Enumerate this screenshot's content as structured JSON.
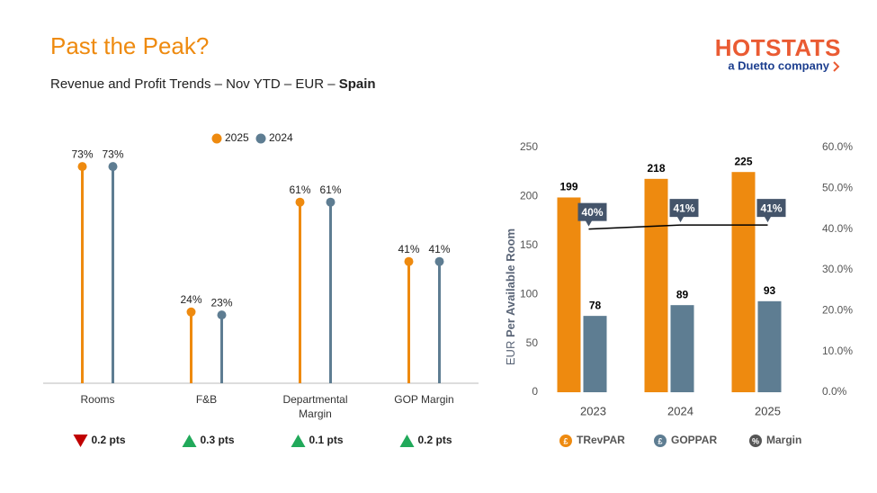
{
  "title": "Past the Peak?",
  "subtitle": "Revenue and Profit Trends – Nov YTD – EUR –",
  "subtitle_bold": "Spain",
  "logo": {
    "name": "HOTSTATS",
    "tagline": "a Duetto company"
  },
  "changes": [
    {
      "direction": "down",
      "color": "#c00000",
      "label": "0.2 pts"
    },
    {
      "direction": "up",
      "color": "#21a95a",
      "label": "0.3 pts"
    },
    {
      "direction": "up",
      "color": "#21a95a",
      "label": "0.1 pts"
    },
    {
      "direction": "up",
      "color": "#21a95a",
      "label": "0.2 pts"
    }
  ],
  "chart_data": [
    {
      "type": "lollipop",
      "categories": [
        "Rooms",
        "F&B",
        "Departmental Margin",
        "GOP Margin"
      ],
      "ylim": [
        0,
        80
      ],
      "series": [
        {
          "name": "2025",
          "color": "#ee8a0f",
          "values": [
            73,
            24,
            61,
            41
          ],
          "value_labels": [
            "73%",
            "24%",
            "61%",
            "41%"
          ]
        },
        {
          "name": "2024",
          "color": "#5e7d92",
          "values": [
            73,
            23,
            61,
            41
          ],
          "value_labels": [
            "73%",
            "23%",
            "61%",
            "41%"
          ]
        }
      ]
    },
    {
      "type": "combo",
      "categories": [
        "2023",
        "2024",
        "2025"
      ],
      "ylabel": "EUR",
      "ylabel_bold": "Per Available Room",
      "ylim": [
        0,
        250
      ],
      "yticks": [
        0,
        50,
        100,
        150,
        200,
        250
      ],
      "y2lim": [
        0,
        60
      ],
      "y2ticks": [
        {
          "value": 0,
          "label": "0.0%"
        },
        {
          "value": 10,
          "label": "10.0%"
        },
        {
          "value": 20,
          "label": "20.0%"
        },
        {
          "value": 30,
          "label": "30.0%"
        },
        {
          "value": 40,
          "label": "40.0%"
        },
        {
          "value": 50,
          "label": "50.0%"
        },
        {
          "value": 60,
          "label": "60.0%"
        }
      ],
      "series": [
        {
          "name": "TRevPAR",
          "kind": "bar",
          "icon": "£",
          "color": "#ee8a0f",
          "values": [
            199,
            218,
            225
          ]
        },
        {
          "name": "GOPPAR",
          "kind": "bar",
          "icon": "£",
          "color": "#5e7d92",
          "values": [
            78,
            89,
            93
          ]
        },
        {
          "name": "Margin",
          "kind": "line",
          "axis": "y2",
          "icon": "%",
          "color": "#000000",
          "label_color": "#44546a",
          "values": [
            40,
            41,
            41
          ],
          "value_labels": [
            "40%",
            "41%",
            "41%"
          ]
        }
      ]
    }
  ]
}
